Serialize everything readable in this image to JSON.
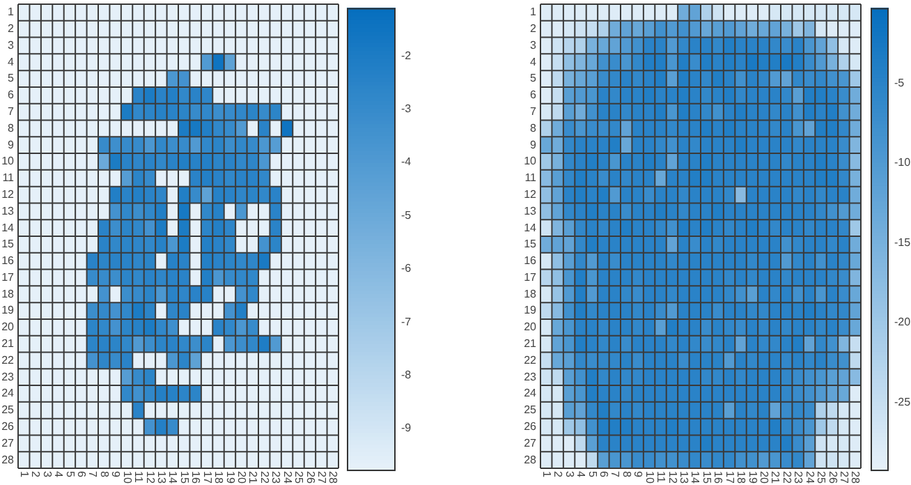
{
  "chart_data": [
    {
      "type": "heatmap",
      "categories": [
        "1",
        "2",
        "3",
        "4",
        "5",
        "6",
        "7",
        "8",
        "9",
        "10",
        "11",
        "12",
        "13",
        "14",
        "15",
        "16",
        "17",
        "18",
        "19",
        "20",
        "21",
        "22",
        "23",
        "24",
        "25",
        "26",
        "27",
        "28"
      ],
      "y_categories": [
        "1",
        "2",
        "3",
        "4",
        "5",
        "6",
        "7",
        "8",
        "9",
        "10",
        "11",
        "12",
        "13",
        "14",
        "15",
        "16",
        "17",
        "18",
        "19",
        "20",
        "21",
        "22",
        "23",
        "24",
        "25",
        "26",
        "27",
        "28"
      ],
      "clim": [
        -9.8,
        -1.1
      ],
      "cticks": [
        -9,
        -8,
        -7,
        -6,
        -5,
        -4,
        -3,
        -2
      ],
      "grid": true,
      "cells": [
        [
          -9.7,
          -9.7,
          -9.7,
          -9.7,
          -9.7,
          -9.7,
          -9.7,
          -9.7,
          -9.7,
          -9.7,
          -9.7,
          -9.7,
          -9.7,
          -9.7,
          -9.7,
          -9.7,
          -9.7,
          -9.7,
          -9.7,
          -9.7,
          -9.7,
          -9.7,
          -9.7,
          -9.7,
          -9.7,
          -9.7,
          -9.7,
          -9.7
        ],
        [
          -9.7,
          -9.7,
          -9.7,
          -9.7,
          -9.7,
          -9.7,
          -9.7,
          -9.7,
          -9.7,
          -9.7,
          -9.7,
          -9.7,
          -9.7,
          -9.7,
          -9.7,
          -9.7,
          -9.7,
          -9.7,
          -9.7,
          -9.7,
          -9.7,
          -9.7,
          -9.7,
          -9.7,
          -9.7,
          -9.7,
          -9.7,
          -9.7
        ],
        [
          -9.7,
          -9.7,
          -9.7,
          -9.7,
          -9.7,
          -9.7,
          -9.7,
          -9.7,
          -9.7,
          -9.7,
          -9.7,
          -9.7,
          -9.7,
          -9.7,
          -9.7,
          -9.7,
          -9.7,
          -9.7,
          -9.7,
          -9.7,
          -9.7,
          -9.7,
          -9.7,
          -9.7,
          -9.7,
          -9.7,
          -9.7,
          -9.7
        ],
        [
          -9.7,
          -9.7,
          -9.7,
          -9.7,
          -9.7,
          -9.7,
          -9.7,
          -9.7,
          -9.7,
          -9.7,
          -9.7,
          -9.7,
          -9.7,
          -9.7,
          -9.7,
          -9.7,
          -4,
          -1.5,
          -4.5,
          -9.7,
          -9.7,
          -9.7,
          -9.7,
          -9.7,
          -9.7,
          -9.7,
          -9.7,
          -9.7
        ],
        [
          -9.7,
          -9.7,
          -9.7,
          -9.7,
          -9.7,
          -9.7,
          -9.7,
          -9.7,
          -9.7,
          -9.7,
          -9.7,
          -9.7,
          -9.7,
          -3.8,
          -3.5,
          -9.7,
          -9.7,
          -9.7,
          -9.7,
          -9.7,
          -9.7,
          -9.7,
          -9.7,
          -9.7,
          -9.7,
          -9.7,
          -9.7,
          -9.7
        ],
        [
          -9.7,
          -9.7,
          -9.7,
          -9.7,
          -9.7,
          -9.7,
          -9.7,
          -9.7,
          -9.7,
          -9.7,
          -2.5,
          -2,
          -2.5,
          -2.3,
          -2.8,
          -2.5,
          -2.7,
          -9.7,
          -9.7,
          -9.7,
          -9.7,
          -9.7,
          -9.7,
          -9.7,
          -9.7,
          -9.7,
          -9.7,
          -9.7
        ],
        [
          -9.7,
          -9.7,
          -9.7,
          -9.7,
          -9.7,
          -9.7,
          -9.7,
          -9.7,
          -9.7,
          -2,
          -2.8,
          -2.6,
          -2.4,
          -2.5,
          -2.6,
          -3,
          -2.8,
          -3.2,
          -3,
          -2.8,
          -2.6,
          -3,
          -2.6,
          -9.7,
          -9.7,
          -9.7,
          -9.7,
          -9.7
        ],
        [
          -9.7,
          -9.7,
          -9.7,
          -9.7,
          -9.7,
          -9.7,
          -9.7,
          -9.7,
          -9.7,
          -9.7,
          -9.7,
          -9.7,
          -9.7,
          -9.7,
          -2,
          -1.8,
          -2.2,
          -2.8,
          -3,
          -4,
          -9.7,
          -2.5,
          -9.7,
          -1.5,
          -9.7,
          -9.7,
          -9.7,
          -9.7
        ],
        [
          -9.7,
          -9.7,
          -9.7,
          -9.7,
          -9.7,
          -9.7,
          -9.7,
          -3,
          -3.3,
          -3,
          -3,
          -3.8,
          -2.8,
          -3.2,
          -3,
          -4,
          -2.8,
          -2.6,
          -3.2,
          -2.8,
          -3,
          -3.8,
          -4.2,
          -9.7,
          -9.7,
          -9.7,
          -9.7,
          -9.7
        ],
        [
          -9.7,
          -9.7,
          -9.7,
          -9.7,
          -9.7,
          -9.7,
          -9.7,
          -5,
          -2,
          -2.5,
          -2.7,
          -2.5,
          -2.8,
          -2.5,
          -2.2,
          -2.4,
          -2.3,
          -2.6,
          -2.5,
          -2.8,
          -2.7,
          -3.8,
          -9.7,
          -9.7,
          -9.7,
          -9.7,
          -9.7,
          -9.7
        ],
        [
          -9.7,
          -9.7,
          -9.7,
          -9.7,
          -9.7,
          -9.7,
          -9.7,
          -9.7,
          -9.7,
          -4.2,
          -2.6,
          -3,
          -9.7,
          -9.7,
          -9.7,
          -2.5,
          -2.3,
          -2.5,
          -2.8,
          -2.5,
          -2.5,
          -2.8,
          -9.7,
          -9.7,
          -9.7,
          -9.7,
          -9.7,
          -9.7
        ],
        [
          -9.7,
          -9.7,
          -9.7,
          -9.7,
          -9.7,
          -9.7,
          -9.7,
          -9.7,
          -2.2,
          -2.5,
          -2.3,
          -2.5,
          -2.7,
          -9.7,
          -2.2,
          -3,
          -4.5,
          -2.4,
          -2.5,
          -2.7,
          -2.6,
          -2.8,
          -2.5,
          -9.7,
          -9.7,
          -9.7,
          -9.7,
          -9.7
        ],
        [
          -9.7,
          -9.7,
          -9.7,
          -9.7,
          -9.7,
          -9.7,
          -9.7,
          -9.7,
          -3.5,
          -2.8,
          -3.2,
          -2.8,
          -2.2,
          -9.7,
          -1.8,
          -9.7,
          -2.8,
          -2.4,
          -9.7,
          -3.8,
          -9.7,
          -9.7,
          -2.5,
          -9.7,
          -9.7,
          -9.7,
          -9.7,
          -9.7
        ],
        [
          -9.7,
          -9.7,
          -9.7,
          -9.7,
          -9.7,
          -9.7,
          -9.7,
          -2.5,
          -3.2,
          -2.6,
          -2.8,
          -3.5,
          -2,
          -9.7,
          -2,
          -9.7,
          -2.6,
          -2.3,
          -2.7,
          -9.7,
          -9.7,
          -9.7,
          -2.5,
          -9.7,
          -9.7,
          -9.7,
          -9.7,
          -9.7
        ],
        [
          -9.7,
          -9.7,
          -9.7,
          -9.7,
          -9.7,
          -9.7,
          -9.7,
          -2.5,
          -2.8,
          -2.6,
          -2.7,
          -2.8,
          -2.4,
          -3.8,
          -2,
          -9.7,
          -2.3,
          -2.5,
          -2.8,
          -9.7,
          -9.7,
          -3.5,
          -2.6,
          -9.7,
          -9.7,
          -9.7,
          -9.7,
          -9.7
        ],
        [
          -9.7,
          -9.7,
          -9.7,
          -9.7,
          -9.7,
          -9.7,
          -2.5,
          -2.6,
          -2.5,
          -2.5,
          -2.7,
          -2.6,
          -9.7,
          -2.4,
          -2.5,
          -9.7,
          -2.3,
          -2.5,
          -2.6,
          -2.8,
          -2.7,
          -1.9,
          -9.7,
          -9.7,
          -9.7,
          -9.7,
          -9.7,
          -9.7
        ],
        [
          -9.7,
          -9.7,
          -9.7,
          -9.7,
          -9.7,
          -9.7,
          -3,
          -3,
          -3.2,
          -2.6,
          -2.8,
          -2.5,
          -2.7,
          -2.5,
          -2.5,
          -9.7,
          -2.2,
          -3.8,
          -3,
          -2.8,
          -2.8,
          -9.7,
          -9.7,
          -9.7,
          -9.7,
          -9.7,
          -9.7,
          -9.7
        ],
        [
          -9.7,
          -9.7,
          -9.7,
          -9.7,
          -9.7,
          -9.7,
          -9.7,
          -3.5,
          -9.7,
          -3.2,
          -3,
          -2.6,
          -3.8,
          -2.5,
          -2.7,
          -2.5,
          -2.4,
          -9.7,
          -9.7,
          -3.5,
          -2.8,
          -9.7,
          -9.7,
          -9.7,
          -9.7,
          -9.7,
          -9.7,
          -9.7
        ],
        [
          -9.7,
          -9.7,
          -9.7,
          -9.7,
          -9.7,
          -9.7,
          -3.2,
          -2.9,
          -3.5,
          -2.8,
          -2,
          -2.6,
          -9.7,
          -2.7,
          -2.5,
          -9.7,
          -9.7,
          -9.7,
          -3.5,
          -2.2,
          -9.7,
          -9.7,
          -9.7,
          -9.7,
          -9.7,
          -9.7,
          -9.7,
          -9.7
        ],
        [
          -9.7,
          -9.7,
          -9.7,
          -9.7,
          -9.7,
          -9.7,
          -2.6,
          -2.8,
          -3.5,
          -2.6,
          -2.4,
          -2,
          -2.8,
          -3.3,
          -9.7,
          -9.7,
          -9.7,
          -2.5,
          -2.8,
          -3.8,
          -3,
          -9.7,
          -9.7,
          -9.7,
          -9.7,
          -9.7,
          -9.7,
          -9.7
        ],
        [
          -9.7,
          -9.7,
          -9.7,
          -9.7,
          -9.7,
          -9.7,
          -2.6,
          -2.5,
          -2.6,
          -2.8,
          -4,
          -3.2,
          -2.6,
          -2.5,
          -2.8,
          -3.2,
          -2.6,
          -9.7,
          -3.8,
          -3.2,
          -2.8,
          -2.1,
          -4,
          -9.7,
          -9.7,
          -9.7,
          -9.7,
          -9.7
        ],
        [
          -9.7,
          -9.7,
          -9.7,
          -9.7,
          -9.7,
          -9.7,
          -3.5,
          -2.7,
          -3,
          -2.5,
          -9.7,
          -9.7,
          -9.7,
          -3.8,
          -2.6,
          -4.5,
          -9.7,
          -9.7,
          -9.7,
          -9.7,
          -9.7,
          -9.7,
          -9.7,
          -9.7,
          -9.7,
          -9.7,
          -9.7,
          -9.7
        ],
        [
          -9.7,
          -9.7,
          -9.7,
          -9.7,
          -9.7,
          -9.7,
          -9.7,
          -9.7,
          -9.7,
          -4.2,
          -3,
          -2.6,
          -9.7,
          -9.7,
          -9.7,
          -9.7,
          -9.7,
          -9.7,
          -9.7,
          -9.7,
          -9.7,
          -9.7,
          -9.7,
          -9.7,
          -9.7,
          -9.7,
          -9.7,
          -9.7
        ],
        [
          -9.7,
          -9.7,
          -9.7,
          -9.7,
          -9.7,
          -9.7,
          -9.7,
          -9.7,
          -9.7,
          -2.8,
          -3.4,
          -2.8,
          -2.3,
          -2.4,
          -2.6,
          -2.6,
          -9.7,
          -9.7,
          -9.7,
          -9.7,
          -9.7,
          -9.7,
          -9.7,
          -9.7,
          -9.7,
          -9.7,
          -9.7,
          -9.7
        ],
        [
          -9.7,
          -9.7,
          -9.7,
          -9.7,
          -9.7,
          -9.7,
          -9.7,
          -9.7,
          -9.7,
          -9.7,
          -2.5,
          -9.7,
          -9.7,
          -9.7,
          -9.7,
          -9.7,
          -9.7,
          -9.7,
          -9.7,
          -9.7,
          -9.7,
          -9.7,
          -9.7,
          -9.7,
          -9.7,
          -9.7,
          -9.7,
          -9.7
        ],
        [
          -9.7,
          -9.7,
          -9.7,
          -9.7,
          -9.7,
          -9.7,
          -9.7,
          -9.7,
          -9.7,
          -9.7,
          -9.7,
          -3.5,
          -2.3,
          -3,
          -9.7,
          -9.7,
          -9.7,
          -9.7,
          -9.7,
          -9.7,
          -9.7,
          -9.7,
          -9.7,
          -9.7,
          -9.7,
          -9.7,
          -9.7,
          -9.7
        ],
        [
          -9.7,
          -9.7,
          -9.7,
          -9.7,
          -9.7,
          -9.7,
          -9.7,
          -9.7,
          -9.7,
          -9.7,
          -9.7,
          -9.7,
          -9.7,
          -9.7,
          -9.7,
          -9.7,
          -9.7,
          -9.7,
          -9.7,
          -9.7,
          -9.7,
          -9.7,
          -9.7,
          -9.7,
          -9.7,
          -9.7,
          -9.7,
          -9.7
        ],
        [
          -9.7,
          -9.7,
          -9.7,
          -9.7,
          -9.7,
          -9.7,
          -9.7,
          -9.7,
          -9.7,
          -9.7,
          -9.7,
          -9.7,
          -9.7,
          -9.7,
          -9.7,
          -9.7,
          -9.7,
          -9.7,
          -9.7,
          -9.7,
          -9.7,
          -9.7,
          -9.7,
          -9.7,
          -9.7,
          -9.7,
          -9.7,
          -9.7
        ]
      ]
    },
    {
      "type": "heatmap",
      "categories": [
        "1",
        "2",
        "3",
        "4",
        "5",
        "6",
        "7",
        "8",
        "9",
        "10",
        "11",
        "12",
        "13",
        "14",
        "15",
        "16",
        "17",
        "18",
        "19",
        "20",
        "21",
        "22",
        "23",
        "24",
        "25",
        "26",
        "27",
        "28"
      ],
      "y_categories": [
        "1",
        "2",
        "3",
        "4",
        "5",
        "6",
        "7",
        "8",
        "9",
        "10",
        "11",
        "12",
        "13",
        "14",
        "15",
        "16",
        "17",
        "18",
        "19",
        "20",
        "21",
        "22",
        "23",
        "24",
        "25",
        "26",
        "27",
        "28"
      ],
      "clim": [
        -29.3,
        -0.3
      ],
      "cticks": [
        -25,
        -20,
        -15,
        -10,
        -5
      ],
      "grid": true,
      "cells": [
        [
          -28,
          -28,
          -28,
          -28,
          -28,
          -28,
          -28,
          -28,
          -28,
          -28,
          -28,
          -28,
          -14,
          -12,
          -22,
          -26,
          -28,
          -28,
          -28,
          -28,
          -27,
          -27,
          -27,
          -27,
          -27,
          -27,
          -27,
          -27
        ],
        [
          -28,
          -28,
          -27,
          -26,
          -25,
          -22,
          -14,
          -12,
          -13,
          -11,
          -8,
          -10,
          -8,
          -10,
          -13,
          -11,
          -10,
          -12,
          -14,
          -13,
          -12,
          -15,
          -20,
          -16,
          -27,
          -28,
          -28,
          -28
        ],
        [
          -28,
          -26,
          -23,
          -22,
          -15,
          -13,
          -12,
          -10,
          -8,
          -5,
          -5,
          -10,
          -6,
          -5,
          -5,
          -6,
          -4,
          -5,
          -5,
          -5,
          -6,
          -7,
          -5,
          -9,
          -12,
          -18,
          -27,
          -28
        ],
        [
          -28,
          -25,
          -18,
          -16,
          -13,
          -8,
          -7,
          -9,
          -6,
          -4,
          -4,
          -9,
          -4,
          -7,
          -4,
          -5,
          -4,
          -5,
          -3,
          -4,
          -4,
          -3,
          -4,
          -7,
          -10,
          -15,
          -22,
          -27
        ],
        [
          -28,
          -24,
          -15,
          -13,
          -11,
          -7,
          -6,
          -5,
          -6,
          -5,
          -4,
          -11,
          -4,
          -5,
          -6,
          -4,
          -5,
          -8,
          -5,
          -6,
          -10,
          -12,
          -6,
          -7,
          -6,
          -8,
          -9,
          -20
        ],
        [
          -28,
          -25,
          -11,
          -10,
          -9,
          -5,
          -6,
          -5,
          -5,
          -4,
          -5,
          -5,
          -4,
          -5,
          -6,
          -5,
          -4,
          -6,
          -5,
          -5,
          -5,
          -6,
          -11,
          -4,
          -4,
          -5,
          -7,
          -14
        ],
        [
          -27,
          -24,
          -11,
          -14,
          -8,
          -5,
          -5,
          -6,
          -5,
          -5,
          -4,
          -9,
          -4,
          -5,
          -6,
          -8,
          -5,
          -4,
          -5,
          -5,
          -6,
          -5,
          -8,
          -4,
          -5,
          -4,
          -8,
          -14
        ],
        [
          -22,
          -14,
          -7,
          -9,
          -7,
          -7,
          -6,
          -12,
          -5,
          -5,
          -5,
          -6,
          -5,
          -5,
          -4,
          -5,
          -4,
          -5,
          -5,
          -5,
          -6,
          -5,
          -9,
          -12,
          -4,
          -4,
          -6,
          -14
        ],
        [
          -13,
          -14,
          -6,
          -5,
          -5,
          -5,
          -4,
          -13,
          -5,
          -5,
          -6,
          -8,
          -5,
          -6,
          -5,
          -5,
          -5,
          -4,
          -5,
          -5,
          -5,
          -5,
          -6,
          -5,
          -5,
          -5,
          -7,
          -16
        ],
        [
          -20,
          -15,
          -6,
          -5,
          -4,
          -5,
          -9,
          -5,
          -5,
          -4,
          -5,
          -12,
          -5,
          -5,
          -4,
          -5,
          -5,
          -5,
          -5,
          -5,
          -5,
          -6,
          -5,
          -5,
          -4,
          -5,
          -7,
          -17
        ],
        [
          -17,
          -11,
          -6,
          -4,
          -5,
          -7,
          -5,
          -6,
          -5,
          -5,
          -13,
          -5,
          -5,
          -4,
          -4,
          -5,
          -5,
          -5,
          -5,
          -5,
          -5,
          -5,
          -5,
          -5,
          -4,
          -4,
          -6,
          -15
        ],
        [
          -18,
          -12,
          -5,
          -4,
          -5,
          -4,
          -10,
          -5,
          -5,
          -7,
          -5,
          -5,
          -6,
          -5,
          -5,
          -5,
          -6,
          -17,
          -5,
          -5,
          -5,
          -5,
          -6,
          -5,
          -6,
          -5,
          -5,
          -14
        ],
        [
          -18,
          -12,
          -6,
          -5,
          -4,
          -5,
          -5,
          -7,
          -5,
          -5,
          -4,
          -5,
          -6,
          -5,
          -5,
          -4,
          -5,
          -5,
          -5,
          -5,
          -5,
          -5,
          -5,
          -5,
          -6,
          -8,
          -10,
          -14
        ],
        [
          -26,
          -16,
          -11,
          -6,
          -5,
          -6,
          -5,
          -4,
          -5,
          -5,
          -6,
          -8,
          -4,
          -5,
          -4,
          -5,
          -6,
          -5,
          -4,
          -5,
          -6,
          -5,
          -5,
          -6,
          -5,
          -5,
          -6,
          -20
        ],
        [
          -14,
          -12,
          -12,
          -6,
          -4,
          -5,
          -5,
          -5,
          -5,
          -5,
          -5,
          -12,
          -5,
          -7,
          -5,
          -6,
          -5,
          -5,
          -5,
          -5,
          -5,
          -8,
          -6,
          -5,
          -5,
          -6,
          -5,
          -14
        ],
        [
          -27,
          -18,
          -11,
          -6,
          -10,
          -5,
          -7,
          -5,
          -5,
          -5,
          -5,
          -6,
          -5,
          -5,
          -5,
          -5,
          -5,
          -5,
          -6,
          -5,
          -5,
          -10,
          -6,
          -5,
          -8,
          -5,
          -6,
          -13
        ],
        [
          -23,
          -18,
          -9,
          -4,
          -9,
          -5,
          -5,
          -5,
          -6,
          -5,
          -5,
          -5,
          -5,
          -5,
          -5,
          -5,
          -6,
          -5,
          -6,
          -5,
          -5,
          -6,
          -5,
          -5,
          -5,
          -6,
          -7,
          -16
        ],
        [
          -27,
          -19,
          -10,
          -4,
          -10,
          -5,
          -5,
          -6,
          -7,
          -5,
          -5,
          -6,
          -5,
          -5,
          -5,
          -5,
          -6,
          -8,
          -11,
          -5,
          -6,
          -5,
          -8,
          -5,
          -9,
          -5,
          -7,
          -13
        ],
        [
          -24,
          -17,
          -8,
          -4,
          -6,
          -5,
          -5,
          -5,
          -6,
          -5,
          -7,
          -10,
          -5,
          -5,
          -5,
          -7,
          -5,
          -5,
          -6,
          -6,
          -5,
          -5,
          -5,
          -4,
          -5,
          -6,
          -6,
          -12
        ],
        [
          -27,
          -13,
          -9,
          -5,
          -5,
          -6,
          -5,
          -5,
          -6,
          -5,
          -11,
          -4,
          -5,
          -5,
          -7,
          -5,
          -6,
          -7,
          -5,
          -6,
          -5,
          -6,
          -5,
          -5,
          -6,
          -5,
          -7,
          -13
        ],
        [
          -27,
          -12,
          -9,
          -4,
          -5,
          -6,
          -5,
          -7,
          -5,
          -5,
          -5,
          -6,
          -5,
          -6,
          -7,
          -6,
          -5,
          -12,
          -5,
          -6,
          -6,
          -5,
          -4,
          -12,
          -6,
          -8,
          -16,
          -25
        ],
        [
          -25,
          -13,
          -11,
          -6,
          -7,
          -6,
          -6,
          -5,
          -7,
          -5,
          -5,
          -5,
          -7,
          -5,
          -5,
          -5,
          -10,
          -5,
          -6,
          -5,
          -5,
          -6,
          -5,
          -6,
          -5,
          -7,
          -8,
          -24
        ],
        [
          -26,
          -24,
          -11,
          -8,
          -4,
          -6,
          -5,
          -6,
          -6,
          -5,
          -5,
          -5,
          -5,
          -5,
          -6,
          -6,
          -5,
          -6,
          -5,
          -5,
          -5,
          -6,
          -7,
          -8,
          -9,
          -11,
          -12,
          -17
        ],
        [
          -27,
          -27,
          -11,
          -9,
          -4,
          -5,
          -5,
          -6,
          -5,
          -5,
          -5,
          -5,
          -5,
          -5,
          -5,
          -5,
          -5,
          -5,
          -5,
          -5,
          -5,
          -6,
          -7,
          -8,
          -10,
          -12,
          -13,
          -28
        ],
        [
          -27,
          -27,
          -11,
          -12,
          -6,
          -4,
          -6,
          -5,
          -6,
          -5,
          -5,
          -5,
          -5,
          -5,
          -5,
          -5,
          -11,
          -5,
          -6,
          -5,
          -12,
          -7,
          -6,
          -7,
          -22,
          -24,
          -27,
          -28
        ],
        [
          -27,
          -27,
          -20,
          -18,
          -8,
          -4,
          -4,
          -4,
          -5,
          -5,
          -5,
          -4,
          -5,
          -5,
          -5,
          -5,
          -5,
          -5,
          -5,
          -5,
          -4,
          -6,
          -7,
          -9,
          -20,
          -24,
          -27,
          -28
        ],
        [
          -28,
          -28,
          -28,
          -24,
          -11,
          -5,
          -5,
          -5,
          -5,
          -5,
          -5,
          -5,
          -5,
          -5,
          -4,
          -5,
          -5,
          -5,
          -5,
          -5,
          -5,
          -4,
          -7,
          -11,
          -26,
          -27,
          -27,
          -28
        ],
        [
          -28,
          -28,
          -28,
          -28,
          -24,
          -11,
          -9,
          -9,
          -7,
          -7,
          -8,
          -8,
          -7,
          -6,
          -7,
          -6,
          -6,
          -8,
          -8,
          -10,
          -9,
          -7,
          -6,
          -12,
          -26,
          -26,
          -27,
          -28
        ]
      ]
    }
  ]
}
